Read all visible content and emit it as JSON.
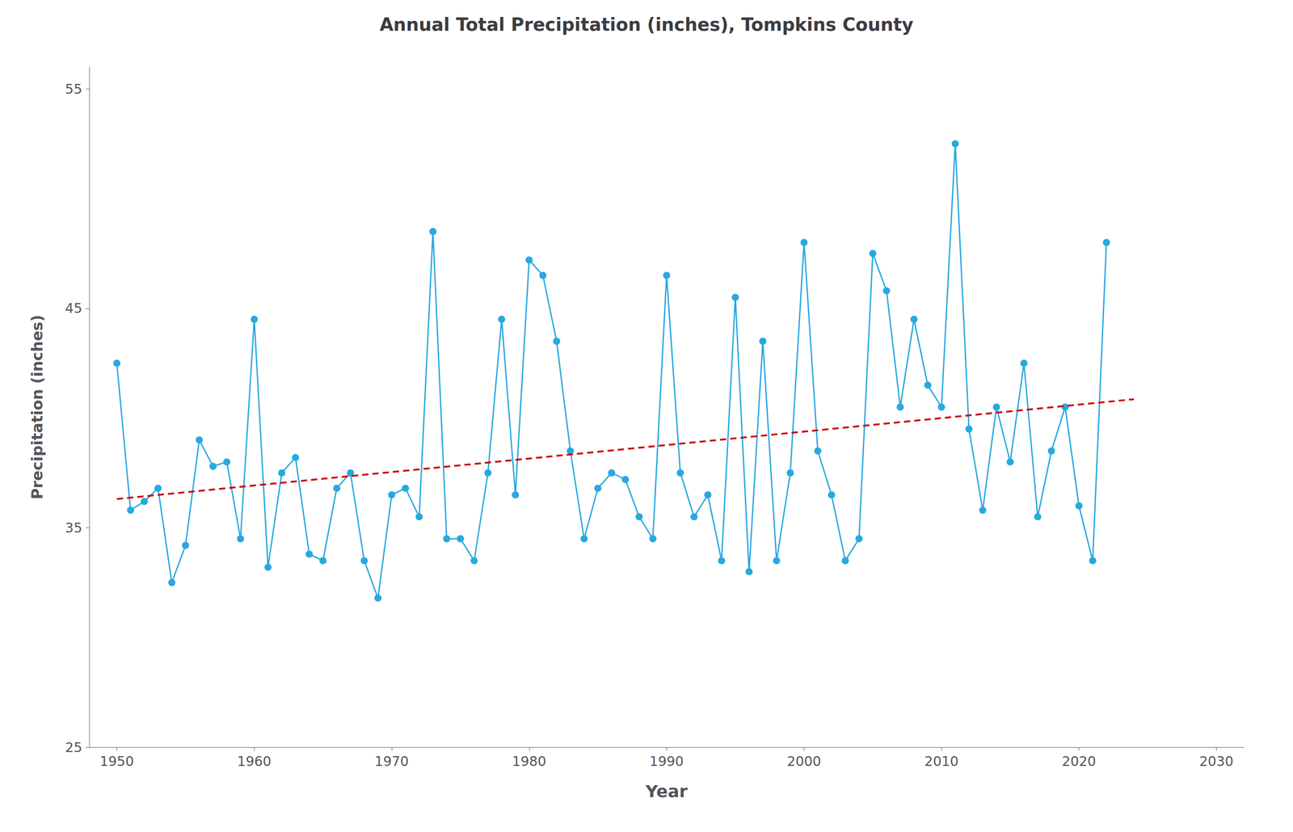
{
  "chart_data": {
    "type": "line",
    "title": "Annual Total Precipitation (inches), Tompkins County",
    "xlabel": "Year",
    "ylabel": "Precipitation (inches)",
    "xlim": [
      1948,
      2032
    ],
    "ylim": [
      25,
      56
    ],
    "xticks": [
      1950,
      1960,
      1970,
      1980,
      1990,
      2000,
      2010,
      2020,
      2030
    ],
    "yticks": [
      25,
      35,
      45,
      55
    ],
    "grid": false,
    "x": [
      1950,
      1951,
      1952,
      1953,
      1954,
      1955,
      1956,
      1957,
      1958,
      1959,
      1960,
      1961,
      1962,
      1963,
      1964,
      1965,
      1966,
      1967,
      1968,
      1969,
      1970,
      1971,
      1972,
      1973,
      1974,
      1975,
      1976,
      1977,
      1978,
      1979,
      1980,
      1981,
      1982,
      1983,
      1984,
      1985,
      1986,
      1987,
      1988,
      1989,
      1990,
      1991,
      1992,
      1993,
      1994,
      1995,
      1996,
      1997,
      1998,
      1999,
      2000,
      2001,
      2002,
      2003,
      2004,
      2005,
      2006,
      2007,
      2008,
      2009,
      2010,
      2011,
      2012,
      2013,
      2014,
      2015,
      2016,
      2017,
      2018,
      2019,
      2020,
      2021,
      2022
    ],
    "series": [
      {
        "type": "line",
        "color": "#29a8e0",
        "marker": "circle",
        "line_style": "solid",
        "values": [
          42.5,
          35.8,
          36.2,
          36.8,
          32.5,
          34.2,
          39.0,
          37.8,
          38.0,
          34.5,
          44.5,
          33.2,
          37.5,
          38.2,
          33.8,
          33.5,
          36.8,
          37.5,
          33.5,
          31.8,
          36.5,
          36.8,
          35.5,
          48.5,
          34.5,
          34.5,
          33.5,
          37.5,
          44.5,
          36.5,
          47.2,
          46.5,
          43.5,
          38.5,
          34.5,
          36.8,
          37.5,
          37.2,
          35.5,
          34.5,
          46.5,
          37.5,
          35.5,
          36.5,
          33.5,
          45.5,
          33.0,
          43.5,
          33.5,
          37.5,
          48.0,
          38.5,
          36.5,
          33.5,
          34.5,
          47.5,
          45.8,
          40.5,
          44.5,
          41.5,
          40.5,
          52.5,
          39.5,
          35.8,
          40.5,
          38.0,
          42.5,
          35.5,
          38.5,
          40.5,
          36.0,
          33.5,
          48.0
        ]
      },
      {
        "type": "line",
        "color": "#cc0000",
        "marker": "none",
        "line_style": "dashed",
        "x": [
          1950,
          2024
        ],
        "values": [
          36.3114,
          40.858
        ]
      }
    ]
  }
}
